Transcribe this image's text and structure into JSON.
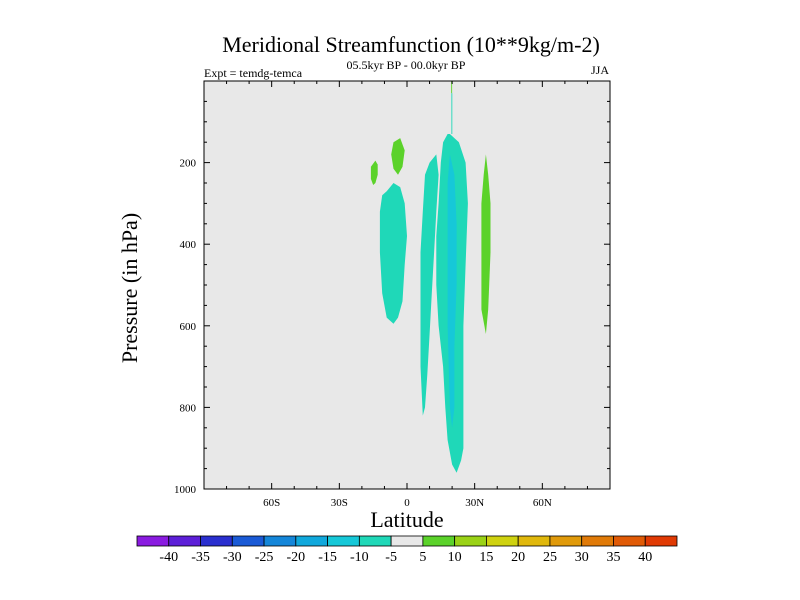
{
  "chart_data": {
    "type": "contour",
    "title": "Meridional Streamfunction (10**9kg/m-2)",
    "left_string": "Expt = temdg-temca",
    "center_string": "05.5kyr BP - 00.0kyr BP",
    "right_string": "JJA",
    "xlabel": "Latitude",
    "ylabel": "Pressure (in hPa)",
    "xlim": [
      -90,
      90
    ],
    "ylim": [
      1000,
      0
    ],
    "x_ticks": [
      -60,
      -30,
      0,
      30,
      60
    ],
    "x_tick_labels": [
      "60S",
      "30S",
      "0",
      "30N",
      "60N"
    ],
    "y_ticks": [
      200,
      400,
      600,
      800,
      1000
    ],
    "y_tick_labels": [
      "200",
      "400",
      "600",
      "800",
      "1000"
    ],
    "colorbar": {
      "levels": [
        -40,
        -35,
        -30,
        -25,
        -20,
        -15,
        -10,
        -5,
        5,
        10,
        15,
        20,
        25,
        30,
        35,
        40
      ],
      "labels": [
        "-40",
        "-35",
        "-30",
        "-25",
        "-20",
        "-15",
        "-10",
        "-5",
        "5",
        "10",
        "15",
        "20",
        "25",
        "30",
        "35",
        "40"
      ],
      "colors": [
        "#8a1be0",
        "#5d1fd8",
        "#2a2fcf",
        "#1a5ad6",
        "#1486d9",
        "#10a8dc",
        "#16c8d8",
        "#1fd8b8",
        "#e8e8e8",
        "#5bd22a",
        "#9ad216",
        "#cfd210",
        "#e0b80c",
        "#e09a0a",
        "#e07a08",
        "#e05a06",
        "#e03a04"
      ]
    },
    "background_color": "#e8e8e8",
    "regions": [
      {
        "name": "negative-cell-main",
        "class": "-10..-5",
        "color": "#1fd8b8",
        "points": [
          [
            19,
            130
          ],
          [
            23,
            150
          ],
          [
            26,
            200
          ],
          [
            27,
            300
          ],
          [
            26,
            450
          ],
          [
            25,
            600
          ],
          [
            25,
            900
          ],
          [
            24,
            930
          ],
          [
            22,
            960
          ],
          [
            20,
            940
          ],
          [
            18,
            880
          ],
          [
            17,
            800
          ],
          [
            16,
            700
          ],
          [
            14,
            600
          ],
          [
            13,
            500
          ],
          [
            13,
            380
          ],
          [
            14,
            300
          ],
          [
            15,
            200
          ],
          [
            16,
            150
          ],
          [
            18,
            130
          ]
        ]
      },
      {
        "name": "negative-cell-inner",
        "class": "-15..-10",
        "color": "#16c8d8",
        "points": [
          [
            19,
            180
          ],
          [
            21,
            230
          ],
          [
            22,
            350
          ],
          [
            22,
            500
          ],
          [
            21,
            650
          ],
          [
            21,
            800
          ],
          [
            20,
            850
          ],
          [
            19,
            800
          ],
          [
            18,
            600
          ],
          [
            18,
            400
          ],
          [
            18,
            250
          ]
        ]
      },
      {
        "name": "negative-cell-left",
        "class": "-10..-5",
        "color": "#1fd8b8",
        "points": [
          [
            8,
            230
          ],
          [
            10,
            200
          ],
          [
            13,
            180
          ],
          [
            14,
            230
          ],
          [
            13,
            320
          ],
          [
            12,
            420
          ],
          [
            11,
            520
          ],
          [
            10,
            620
          ],
          [
            9,
            720
          ],
          [
            8,
            800
          ],
          [
            7,
            820
          ],
          [
            6,
            700
          ],
          [
            6,
            560
          ],
          [
            6,
            420
          ],
          [
            7,
            320
          ]
        ]
      },
      {
        "name": "negative-cell-sh",
        "class": "-10..-5",
        "color": "#1fd8b8",
        "points": [
          [
            -9,
            270
          ],
          [
            -6,
            250
          ],
          [
            -3,
            260
          ],
          [
            -1,
            300
          ],
          [
            0,
            380
          ],
          [
            -1,
            450
          ],
          [
            -2,
            540
          ],
          [
            -4,
            580
          ],
          [
            -6,
            595
          ],
          [
            -9,
            580
          ],
          [
            -11,
            520
          ],
          [
            -12,
            420
          ],
          [
            -12,
            320
          ],
          [
            -11,
            280
          ]
        ]
      },
      {
        "name": "positive-cell-30n",
        "class": "5..10",
        "color": "#5bd22a",
        "points": [
          [
            35,
            180
          ],
          [
            36,
            230
          ],
          [
            37,
            300
          ],
          [
            37,
            420
          ],
          [
            36,
            560
          ],
          [
            35,
            620
          ],
          [
            33,
            560
          ],
          [
            33,
            420
          ],
          [
            33,
            300
          ],
          [
            34,
            230
          ]
        ]
      },
      {
        "name": "positive-cell-eq",
        "class": "5..10",
        "color": "#5bd22a",
        "points": [
          [
            -6,
            150
          ],
          [
            -3,
            140
          ],
          [
            -1,
            170
          ],
          [
            -2,
            210
          ],
          [
            -4,
            230
          ],
          [
            -6,
            215
          ],
          [
            -7,
            180
          ]
        ]
      },
      {
        "name": "positive-cell-sh-small",
        "class": "5..10",
        "color": "#5bd22a",
        "points": [
          [
            -16,
            210
          ],
          [
            -14,
            195
          ],
          [
            -13,
            205
          ],
          [
            -13,
            230
          ],
          [
            -14,
            250
          ],
          [
            -15,
            255
          ],
          [
            -16,
            240
          ]
        ]
      },
      {
        "name": "positive-streak-top",
        "class": "5..10",
        "color": "#5bd22a",
        "points": [
          [
            19.6,
            0
          ],
          [
            20,
            0
          ],
          [
            20,
            30
          ],
          [
            19.6,
            30
          ]
        ]
      },
      {
        "name": "negative-streak-top",
        "class": "-10..-5",
        "color": "#1fd8b8",
        "points": [
          [
            19.7,
            30
          ],
          [
            20.1,
            30
          ],
          [
            20.1,
            130
          ],
          [
            19.7,
            130
          ]
        ]
      }
    ]
  }
}
